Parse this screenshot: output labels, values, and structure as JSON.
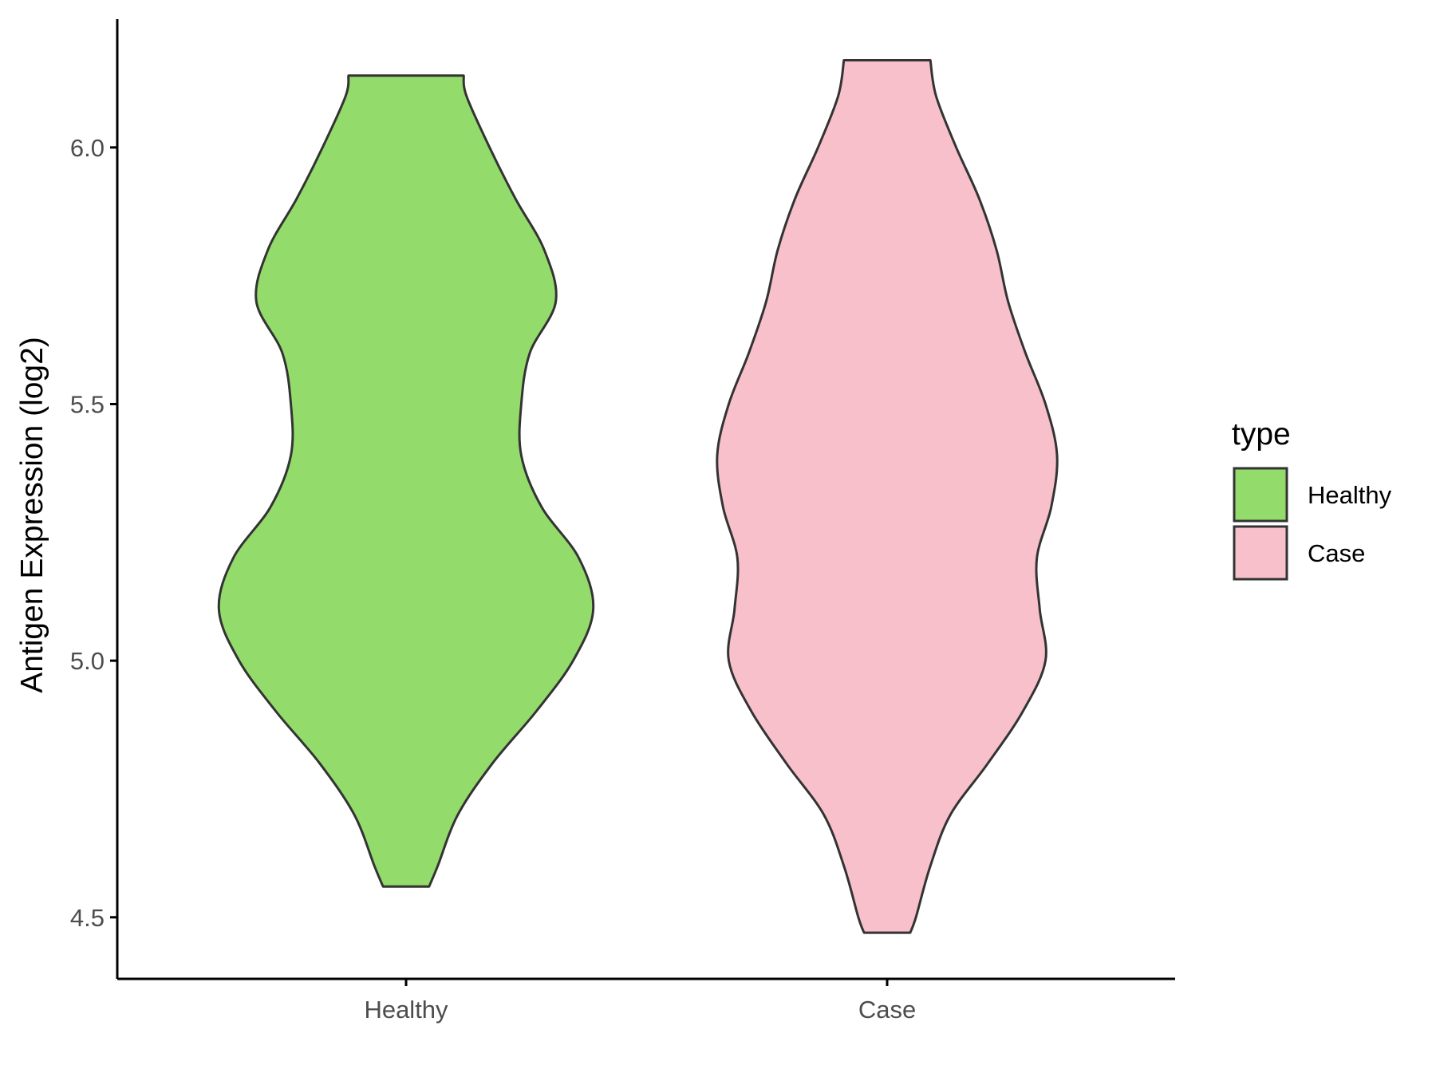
{
  "chart_data": {
    "type": "violin",
    "title": "",
    "xlabel": "",
    "ylabel": "Antigen Expression (log2)",
    "ylim": [
      4.38,
      6.25
    ],
    "yticks": [
      4.5,
      5.0,
      5.5,
      6.0
    ],
    "ytick_labels": [
      "4.5",
      "5.0",
      "5.5",
      "6.0"
    ],
    "categories": [
      "Healthy",
      "Case"
    ],
    "grid": false,
    "legend": {
      "title": "type",
      "position": "right",
      "entries": [
        "Healthy",
        "Case"
      ]
    },
    "series": [
      {
        "name": "Healthy",
        "color": "#93DC6B",
        "y_range": [
          4.56,
          6.14
        ],
        "half_width_profile": [
          [
            4.56,
            0.08
          ],
          [
            4.6,
            0.11
          ],
          [
            4.7,
            0.18
          ],
          [
            4.8,
            0.3
          ],
          [
            4.9,
            0.45
          ],
          [
            5.0,
            0.58
          ],
          [
            5.1,
            0.65
          ],
          [
            5.2,
            0.6
          ],
          [
            5.3,
            0.47
          ],
          [
            5.4,
            0.4
          ],
          [
            5.5,
            0.4
          ],
          [
            5.6,
            0.43
          ],
          [
            5.7,
            0.52
          ],
          [
            5.8,
            0.48
          ],
          [
            5.9,
            0.38
          ],
          [
            6.0,
            0.29
          ],
          [
            6.1,
            0.21
          ],
          [
            6.14,
            0.2
          ]
        ]
      },
      {
        "name": "Case",
        "color": "#F7C0CB",
        "y_range": [
          4.47,
          6.17
        ],
        "half_width_profile": [
          [
            4.47,
            0.08
          ],
          [
            4.5,
            0.1
          ],
          [
            4.6,
            0.15
          ],
          [
            4.7,
            0.22
          ],
          [
            4.8,
            0.35
          ],
          [
            4.9,
            0.47
          ],
          [
            5.0,
            0.55
          ],
          [
            5.1,
            0.53
          ],
          [
            5.2,
            0.52
          ],
          [
            5.3,
            0.57
          ],
          [
            5.4,
            0.59
          ],
          [
            5.5,
            0.55
          ],
          [
            5.6,
            0.48
          ],
          [
            5.7,
            0.42
          ],
          [
            5.8,
            0.38
          ],
          [
            5.9,
            0.32
          ],
          [
            6.0,
            0.24
          ],
          [
            6.1,
            0.17
          ],
          [
            6.17,
            0.15
          ]
        ]
      }
    ]
  }
}
